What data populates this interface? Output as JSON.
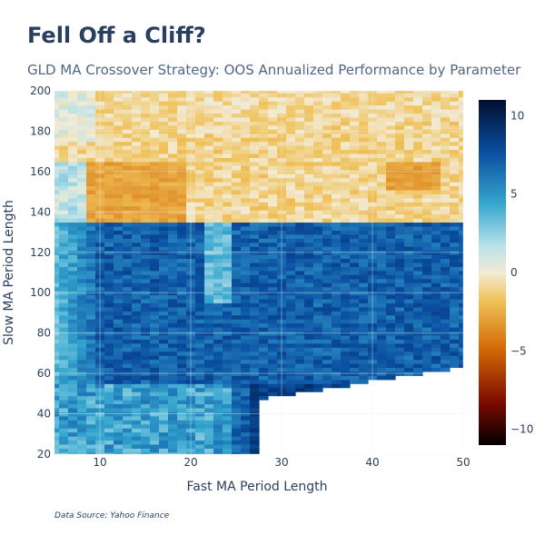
{
  "header": {
    "title": "Fell Off a Cliff?",
    "subtitle": "GLD MA Crossover Strategy: OOS Annualized Performance by Parameter"
  },
  "footer": {
    "source": "Data Source: Yahoo Finance"
  },
  "chart_data": {
    "type": "heatmap",
    "title": "Fell Off a Cliff?",
    "subtitle": "GLD MA Crossover Strategy: OOS Annualized Performance by Parameter",
    "xlabel": "Fast MA Period Length",
    "ylabel": "Slow MA Period Length",
    "x_range": [
      5,
      50
    ],
    "y_range": [
      20,
      200
    ],
    "x_ticks": [
      10,
      20,
      30,
      40,
      50
    ],
    "y_ticks": [
      20,
      40,
      60,
      80,
      100,
      120,
      140,
      160,
      180,
      200
    ],
    "grid": true,
    "colorbar": {
      "min": -11,
      "max": 11,
      "ticks": [
        10,
        5,
        0,
        -5,
        -10
      ],
      "tick_labels": [
        "10",
        "5",
        "0",
        "−5",
        "−10"
      ],
      "colorscale": [
        [
          0.0,
          "#000000"
        ],
        [
          0.12,
          "#7a0a00"
        ],
        [
          0.28,
          "#d46a05"
        ],
        [
          0.42,
          "#f0c35c"
        ],
        [
          0.5,
          "#f2ebd6"
        ],
        [
          0.58,
          "#b6e0e8"
        ],
        [
          0.7,
          "#35a6cf"
        ],
        [
          0.85,
          "#0a4da0"
        ],
        [
          1.0,
          "#000f2e"
        ]
      ]
    },
    "regions": [
      {
        "description": "fast 5-50, slow 136-200",
        "approx_value": -1.5
      },
      {
        "description": "fast 5-50, slow below 136 above cliff line",
        "approx_value": 7.5
      },
      {
        "description": "fast 5-10, slow 20-136 edge",
        "approx_value": 4
      },
      {
        "description": "fast > slow-1 (undefined)",
        "approx_value": null
      }
    ]
  }
}
